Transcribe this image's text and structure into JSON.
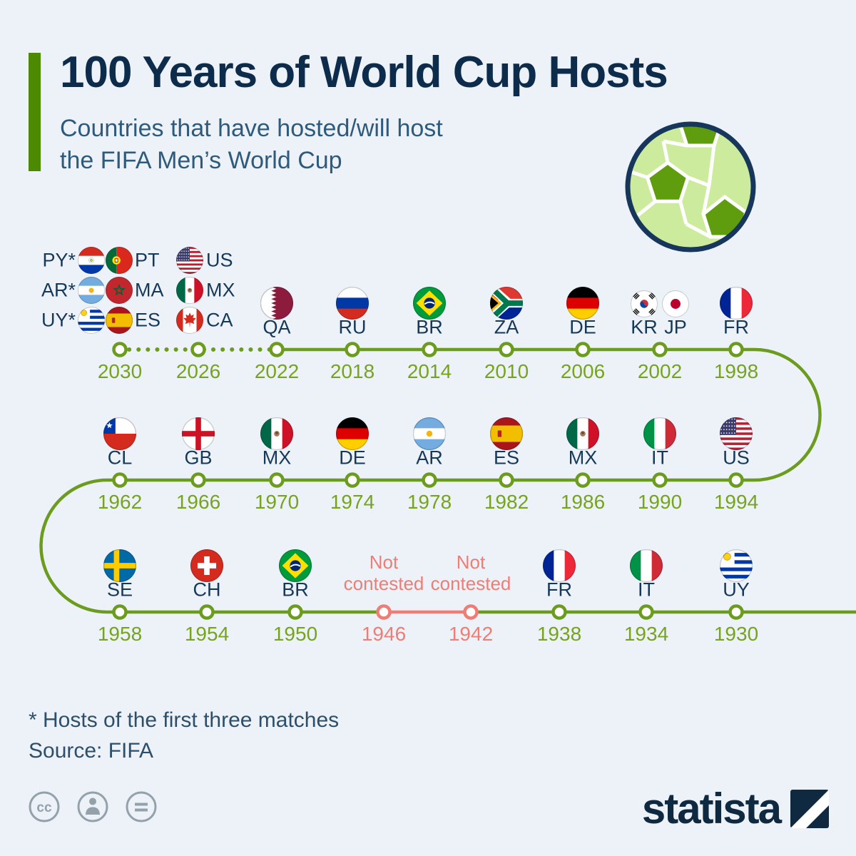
{
  "header": {
    "title": "100 Years of World Cup Hosts",
    "subtitle_line1": "Countries that have hosted/will host",
    "subtitle_line2": "the FIFA Men’s World Cup"
  },
  "chart_data": {
    "type": "timeline",
    "title": "100 Years of World Cup Hosts",
    "subtitle": "Countries that have hosted/will host the FIFA Men’s World Cup",
    "colors": {
      "timeline": "#6b9c1e",
      "not_contested": "#ee7d76",
      "year_label": "#76a41c",
      "code_label": "#16395a",
      "node_fill": "#ffffff"
    },
    "rows": [
      {
        "entries": [
          {
            "year": "2030",
            "status": "future",
            "hosts": [
              {
                "code": "PY",
                "label": "PY*"
              },
              {
                "code": "PT",
                "label": "PT"
              },
              {
                "code": "AR",
                "label": "AR*"
              },
              {
                "code": "MA",
                "label": "MA"
              },
              {
                "code": "UY",
                "label": "UY*"
              },
              {
                "code": "ES",
                "label": "ES"
              }
            ]
          },
          {
            "year": "2026",
            "status": "future",
            "hosts": [
              {
                "code": "US",
                "label": "US"
              },
              {
                "code": "MX",
                "label": "MX"
              },
              {
                "code": "CA",
                "label": "CA"
              }
            ]
          },
          {
            "year": "2022",
            "status": "hosted",
            "hosts": [
              {
                "code": "QA",
                "label": "QA"
              }
            ]
          },
          {
            "year": "2018",
            "status": "hosted",
            "hosts": [
              {
                "code": "RU",
                "label": "RU"
              }
            ]
          },
          {
            "year": "2014",
            "status": "hosted",
            "hosts": [
              {
                "code": "BR",
                "label": "BR"
              }
            ]
          },
          {
            "year": "2010",
            "status": "hosted",
            "hosts": [
              {
                "code": "ZA",
                "label": "ZA"
              }
            ]
          },
          {
            "year": "2006",
            "status": "hosted",
            "hosts": [
              {
                "code": "DE",
                "label": "DE"
              }
            ]
          },
          {
            "year": "2002",
            "status": "hosted",
            "hosts": [
              {
                "code": "KR",
                "label": "KR"
              },
              {
                "code": "JP",
                "label": "JP"
              }
            ]
          },
          {
            "year": "1998",
            "status": "hosted",
            "hosts": [
              {
                "code": "FR",
                "label": "FR"
              }
            ]
          }
        ]
      },
      {
        "entries": [
          {
            "year": "1962",
            "status": "hosted",
            "hosts": [
              {
                "code": "CL",
                "label": "CL"
              }
            ]
          },
          {
            "year": "1966",
            "status": "hosted",
            "hosts": [
              {
                "code": "GB",
                "label": "GB"
              }
            ]
          },
          {
            "year": "1970",
            "status": "hosted",
            "hosts": [
              {
                "code": "MX",
                "label": "MX"
              }
            ]
          },
          {
            "year": "1974",
            "status": "hosted",
            "hosts": [
              {
                "code": "DE",
                "label": "DE"
              }
            ]
          },
          {
            "year": "1978",
            "status": "hosted",
            "hosts": [
              {
                "code": "AR",
                "label": "AR"
              }
            ]
          },
          {
            "year": "1982",
            "status": "hosted",
            "hosts": [
              {
                "code": "ES",
                "label": "ES"
              }
            ]
          },
          {
            "year": "1986",
            "status": "hosted",
            "hosts": [
              {
                "code": "MX",
                "label": "MX"
              }
            ]
          },
          {
            "year": "1990",
            "status": "hosted",
            "hosts": [
              {
                "code": "IT",
                "label": "IT"
              }
            ]
          },
          {
            "year": "1994",
            "status": "hosted",
            "hosts": [
              {
                "code": "US",
                "label": "US"
              }
            ]
          }
        ]
      },
      {
        "entries": [
          {
            "year": "1958",
            "status": "hosted",
            "hosts": [
              {
                "code": "SE",
                "label": "SE"
              }
            ]
          },
          {
            "year": "1954",
            "status": "hosted",
            "hosts": [
              {
                "code": "CH",
                "label": "CH"
              }
            ]
          },
          {
            "year": "1950",
            "status": "hosted",
            "hosts": [
              {
                "code": "BR",
                "label": "BR"
              }
            ]
          },
          {
            "year": "1946",
            "status": "not_contested",
            "note": "Not contested",
            "hosts": []
          },
          {
            "year": "1942",
            "status": "not_contested",
            "note": "Not contested",
            "hosts": []
          },
          {
            "year": "1938",
            "status": "hosted",
            "hosts": [
              {
                "code": "FR",
                "label": "FR"
              }
            ]
          },
          {
            "year": "1934",
            "status": "hosted",
            "hosts": [
              {
                "code": "IT",
                "label": "IT"
              }
            ]
          },
          {
            "year": "1930",
            "status": "hosted",
            "hosts": [
              {
                "code": "UY",
                "label": "UY"
              }
            ]
          }
        ]
      }
    ]
  },
  "footer": {
    "footnote": "* Hosts of the first three matches",
    "source": "Source: FIFA",
    "logo_text": "statista"
  },
  "license_icons": [
    "cc-icon",
    "attribution-icon",
    "no-derivatives-icon"
  ]
}
